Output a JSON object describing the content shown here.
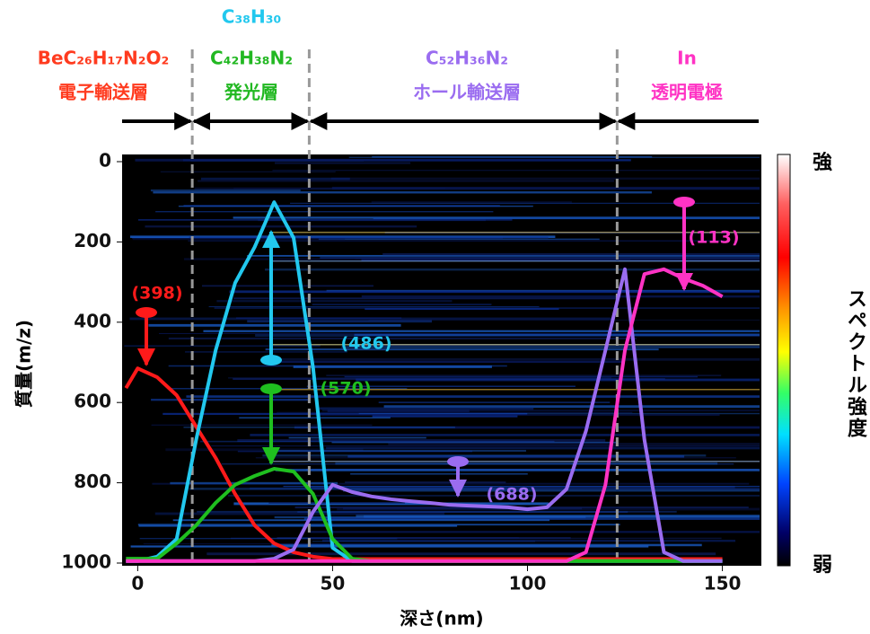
{
  "chart_data": {
    "type": "line",
    "xlabel": "深さ(nm)",
    "ylabel": "質量(m/z)",
    "xlim": [
      -4,
      160
    ],
    "xticks": [
      0,
      50,
      100,
      150
    ],
    "ylim": [
      1000,
      0
    ],
    "yticks": [
      0,
      200,
      400,
      600,
      800,
      1000
    ],
    "colorbar": {
      "label": "スペクトル強度",
      "high": "強",
      "low": "弱"
    },
    "boundaries": [
      14,
      44,
      123
    ],
    "layers": [
      {
        "formulas": [
          {
            "text": "BeC₂₆H₁₇N₂O₂",
            "color": "#ff3b1f"
          }
        ],
        "name": "電子輸送層",
        "color": "#ff3b1f"
      },
      {
        "formulas": [
          {
            "text": "C₃₈H₃₀",
            "color": "#22c8ee"
          },
          {
            "text": "C₄₂H₃₈N₂",
            "color": "#22b822"
          }
        ],
        "name": "発光層",
        "color": "#22b822"
      },
      {
        "formulas": [
          {
            "text": "C₅₂H₃₆N₂",
            "color": "#9a6cf0"
          }
        ],
        "name": "ホール輸送層",
        "color": "#9a6cf0"
      },
      {
        "formulas": [
          {
            "text": "In",
            "color": "#ff33c4"
          }
        ],
        "name": "透明電極",
        "color": "#ff33c4"
      }
    ],
    "x": [
      -3,
      0,
      5,
      10,
      15,
      20,
      25,
      30,
      35,
      40,
      45,
      50,
      55,
      60,
      65,
      70,
      75,
      80,
      85,
      90,
      95,
      100,
      105,
      110,
      115,
      120,
      125,
      130,
      135,
      140,
      145,
      150
    ],
    "series": [
      {
        "name": "(398)",
        "color": "#ff1a1a",
        "values": [
          564,
          515,
          537,
          582,
          660,
          738,
          828,
          906,
          951,
          973,
          984,
          990,
          990,
          990,
          990,
          990,
          990,
          990,
          990,
          990,
          990,
          990,
          990,
          990,
          990,
          990,
          990,
          990,
          990,
          990,
          990,
          990
        ]
      },
      {
        "name": "(486)",
        "color": "#22c8ee",
        "values": [
          995,
          995,
          984,
          940,
          693,
          470,
          302,
          213,
          101,
          190,
          514,
          962,
          995,
          995,
          995,
          995,
          995,
          995,
          995,
          995,
          995,
          995,
          995,
          995,
          995,
          995,
          995,
          995,
          995,
          995,
          995,
          995
        ]
      },
      {
        "name": "(570)",
        "color": "#1fbf1f",
        "values": [
          989,
          989,
          989,
          951,
          906,
          850,
          805,
          783,
          765,
          772,
          828,
          940,
          989,
          995,
          995,
          995,
          995,
          995,
          995,
          995,
          995,
          995,
          995,
          995,
          995,
          995,
          995,
          995,
          995,
          995,
          995,
          995
        ]
      },
      {
        "name": "(688)",
        "color": "#9a6cf0",
        "values": [
          995,
          995,
          995,
          995,
          995,
          995,
          995,
          995,
          989,
          966,
          872,
          805,
          823,
          834,
          841,
          846,
          850,
          855,
          857,
          859,
          861,
          866,
          861,
          816,
          671,
          470,
          268,
          693,
          973,
          995,
          995,
          995
        ]
      },
      {
        "name": "(113)",
        "color": "#ff33c4",
        "values": [
          995,
          995,
          995,
          995,
          995,
          995,
          995,
          995,
          995,
          995,
          995,
          995,
          995,
          995,
          995,
          995,
          995,
          995,
          995,
          995,
          995,
          995,
          995,
          995,
          973,
          805,
          470,
          280,
          268,
          291,
          309,
          336
        ]
      }
    ]
  }
}
